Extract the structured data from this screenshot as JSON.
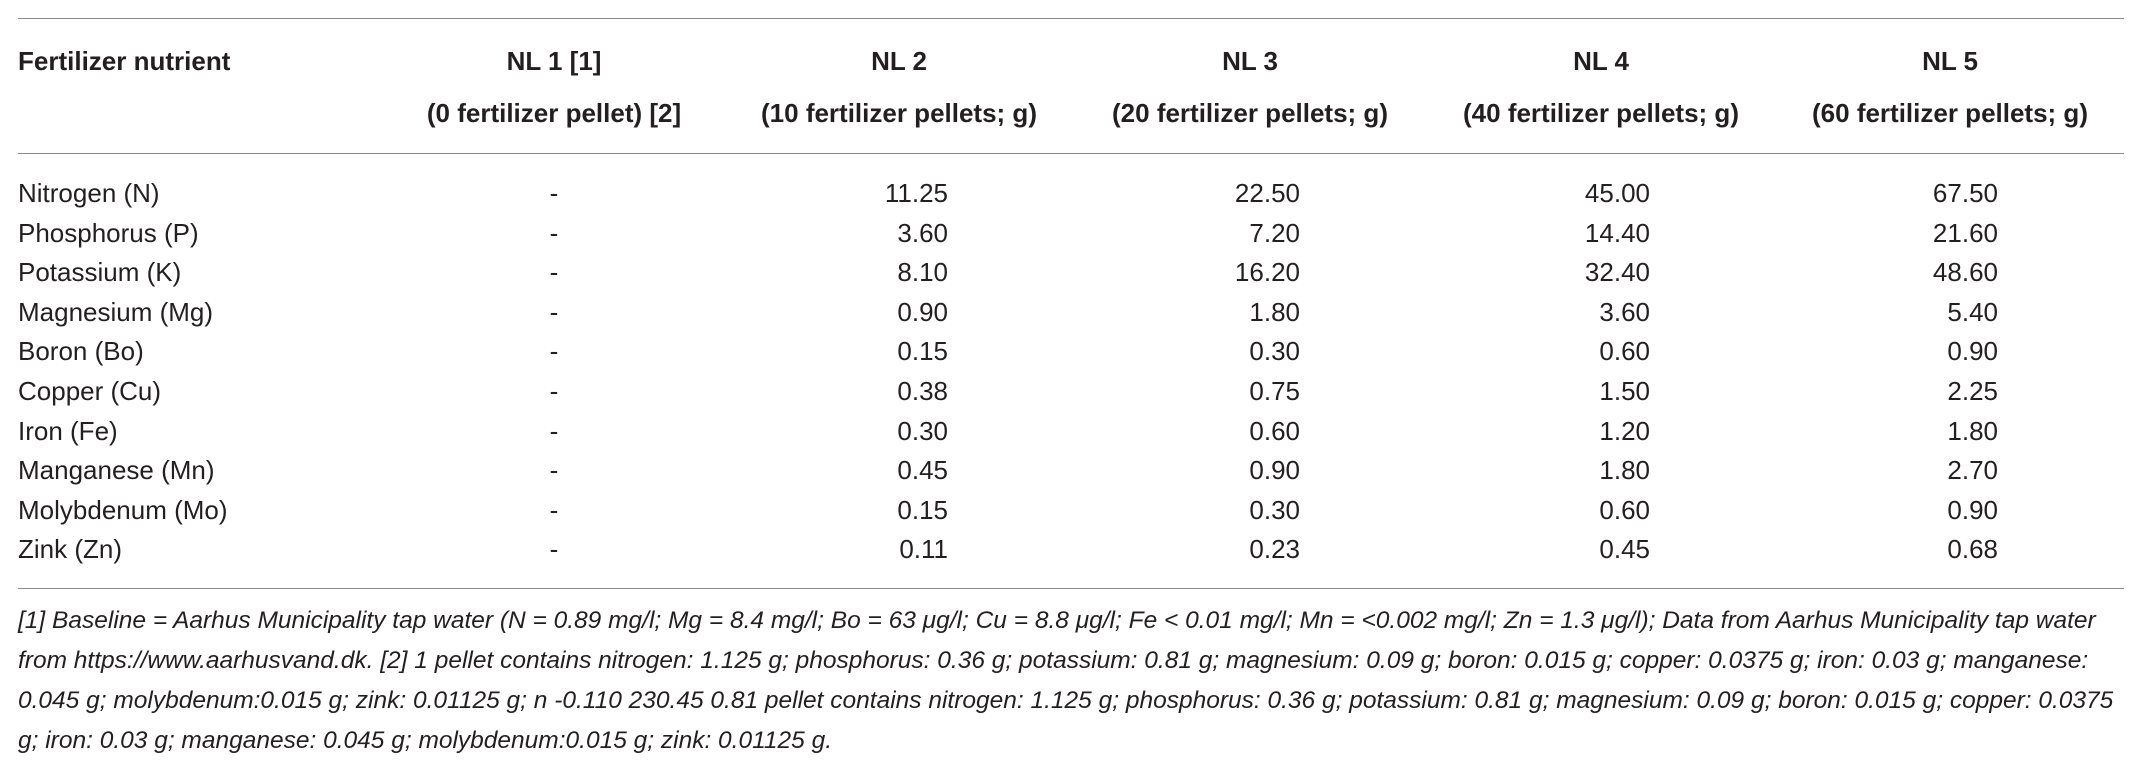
{
  "table": {
    "headers": [
      {
        "line1": "Fertilizer nutrient",
        "line2": ""
      },
      {
        "line1": "NL 1 [1]",
        "line2": "(0 fertilizer pellet) [2]"
      },
      {
        "line1": "NL 2",
        "line2": "(10 fertilizer pellets; g)"
      },
      {
        "line1": "NL 3",
        "line2": "(20 fertilizer pellets; g)"
      },
      {
        "line1": "NL 4",
        "line2": "(40 fertilizer pellets; g)"
      },
      {
        "line1": "NL 5",
        "line2": "(60 fertilizer pellets; g)"
      }
    ],
    "rows": [
      {
        "nutrient": "Nitrogen (N)",
        "nl1": "-",
        "nl2": "11.25",
        "nl3": "22.50",
        "nl4": "45.00",
        "nl5": "67.50"
      },
      {
        "nutrient": "Phosphorus (P)",
        "nl1": "-",
        "nl2": "3.60",
        "nl3": "7.20",
        "nl4": "14.40",
        "nl5": "21.60"
      },
      {
        "nutrient": "Potassium (K)",
        "nl1": "-",
        "nl2": "8.10",
        "nl3": "16.20",
        "nl4": "32.40",
        "nl5": "48.60"
      },
      {
        "nutrient": "Magnesium (Mg)",
        "nl1": "-",
        "nl2": "0.90",
        "nl3": "1.80",
        "nl4": "3.60",
        "nl5": "5.40"
      },
      {
        "nutrient": "Boron (Bo)",
        "nl1": "-",
        "nl2": "0.15",
        "nl3": "0.30",
        "nl4": "0.60",
        "nl5": "0.90"
      },
      {
        "nutrient": "Copper (Cu)",
        "nl1": "-",
        "nl2": "0.38",
        "nl3": "0.75",
        "nl4": "1.50",
        "nl5": "2.25"
      },
      {
        "nutrient": "Iron (Fe)",
        "nl1": "-",
        "nl2": "0.30",
        "nl3": "0.60",
        "nl4": "1.20",
        "nl5": "1.80"
      },
      {
        "nutrient": "Manganese (Mn)",
        "nl1": "-",
        "nl2": "0.45",
        "nl3": "0.90",
        "nl4": "1.80",
        "nl5": "2.70"
      },
      {
        "nutrient": "Molybdenum (Mo)",
        "nl1": "-",
        "nl2": "0.15",
        "nl3": "0.30",
        "nl4": "0.60",
        "nl5": "0.90"
      },
      {
        "nutrient": "Zink (Zn)",
        "nl1": "-",
        "nl2": "0.11",
        "nl3": "0.23",
        "nl4": "0.45",
        "nl5": "0.68"
      }
    ]
  },
  "footnote": "[1] Baseline = Aarhus Municipality tap water (N = 0.89 mg/l; Mg = 8.4 mg/l; Bo = 63 μg/l; Cu = 8.8 μg/l; Fe < 0.01 mg/l; Mn = <0.002 mg/l; Zn = 1.3 μg/l); Data from Aarhus Municipality tap water from https://www.aarhusvand.dk. [2] 1 pellet contains nitrogen: 1.125 g; phosphorus: 0.36 g; potassium: 0.81 g; magnesium: 0.09 g; boron: 0.015 g; copper: 0.0375 g; iron: 0.03 g; manganese: 0.045 g; molybdenum:0.015 g; zink: 0.01125 g; n -0.110 230.45 0.81 pellet contains nitrogen: 1.125 g; phosphorus: 0.36 g; potassium: 0.81 g; magnesium: 0.09 g; boron: 0.015 g; copper: 0.0375 g; iron: 0.03 g; manganese: 0.045 g; molybdenum:0.015 g; zink: 0.01125 g."
}
